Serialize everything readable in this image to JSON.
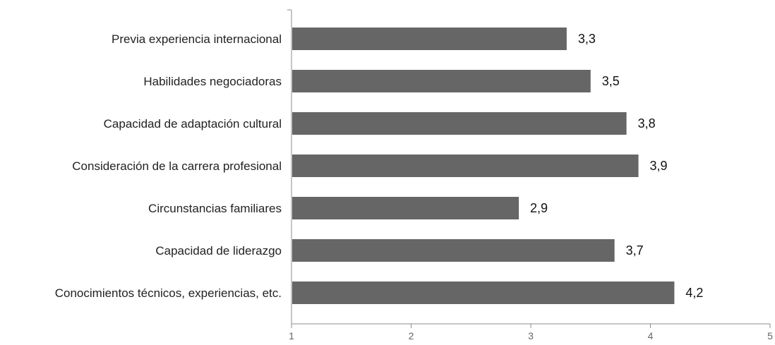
{
  "chart_data": {
    "type": "bar",
    "orientation": "horizontal",
    "title": "",
    "xlabel": "",
    "ylabel": "",
    "xlim": [
      1,
      5
    ],
    "x_ticks": [
      "1",
      "2",
      "3",
      "4",
      "5"
    ],
    "grid": false,
    "legend": "none",
    "bar_color": "#666666",
    "categories": [
      "Previa experiencia internacional",
      "Habilidades negociadoras",
      "Capacidad de adaptación cultural",
      "Consideración de la carrera profesional",
      "Circunstancias familiares",
      "Capacidad de liderazgo",
      "Conocimientos técnicos, experiencias, etc."
    ],
    "values": [
      3.3,
      3.5,
      3.8,
      3.9,
      2.9,
      3.7,
      4.2
    ],
    "value_labels": [
      "3,3",
      "3,5",
      "3,8",
      "3,9",
      "2,9",
      "3,7",
      "4,2"
    ]
  }
}
